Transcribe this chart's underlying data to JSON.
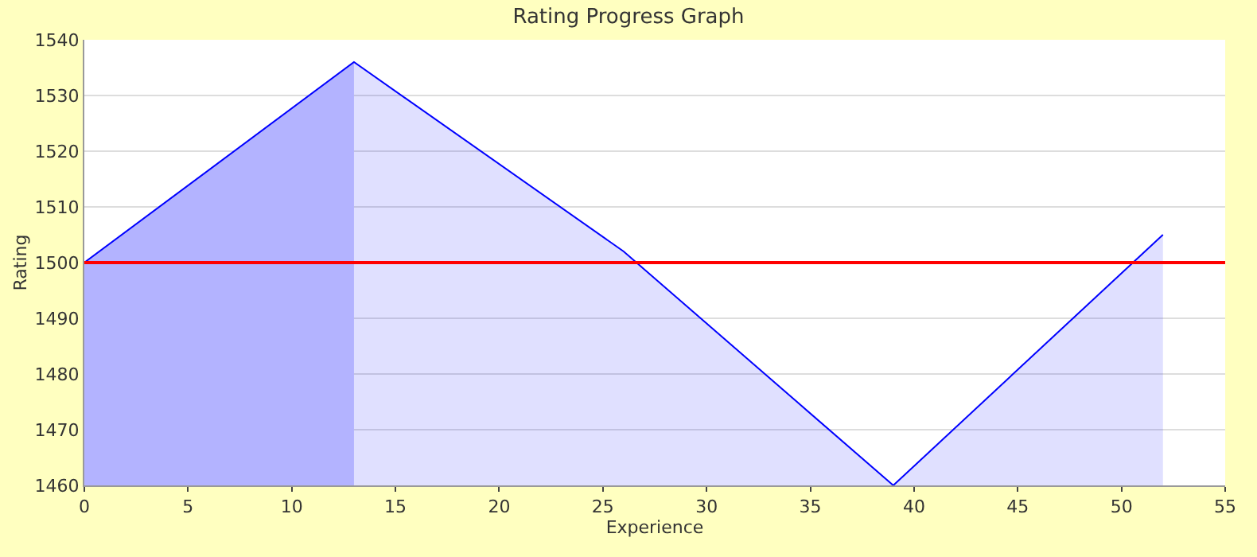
{
  "chart_data": {
    "type": "area",
    "title": "Rating Progress Graph",
    "xlabel": "Experience",
    "ylabel": "Rating",
    "series": [
      {
        "x": [
          0,
          13
        ],
        "values": [
          1500,
          1536
        ],
        "color": "#ccccff"
      },
      {
        "x": [
          0,
          13,
          26,
          39,
          52
        ],
        "values": [
          1500,
          1536,
          1502,
          1460,
          1505
        ],
        "color": "#0000ff"
      }
    ],
    "xlim": [
      0,
      55
    ],
    "xticks": [
      0,
      5,
      10,
      15,
      20,
      25,
      30,
      35,
      40,
      45,
      50,
      55
    ],
    "ylim": [
      1460,
      1540
    ],
    "yticks": [
      1460,
      1470,
      1480,
      1490,
      1500,
      1510,
      1520,
      1530,
      1540
    ],
    "grid": "y",
    "legend": false,
    "ref_lines": [
      {
        "axis": "y",
        "value": 1500,
        "color": "#ff0000"
      }
    ]
  }
}
